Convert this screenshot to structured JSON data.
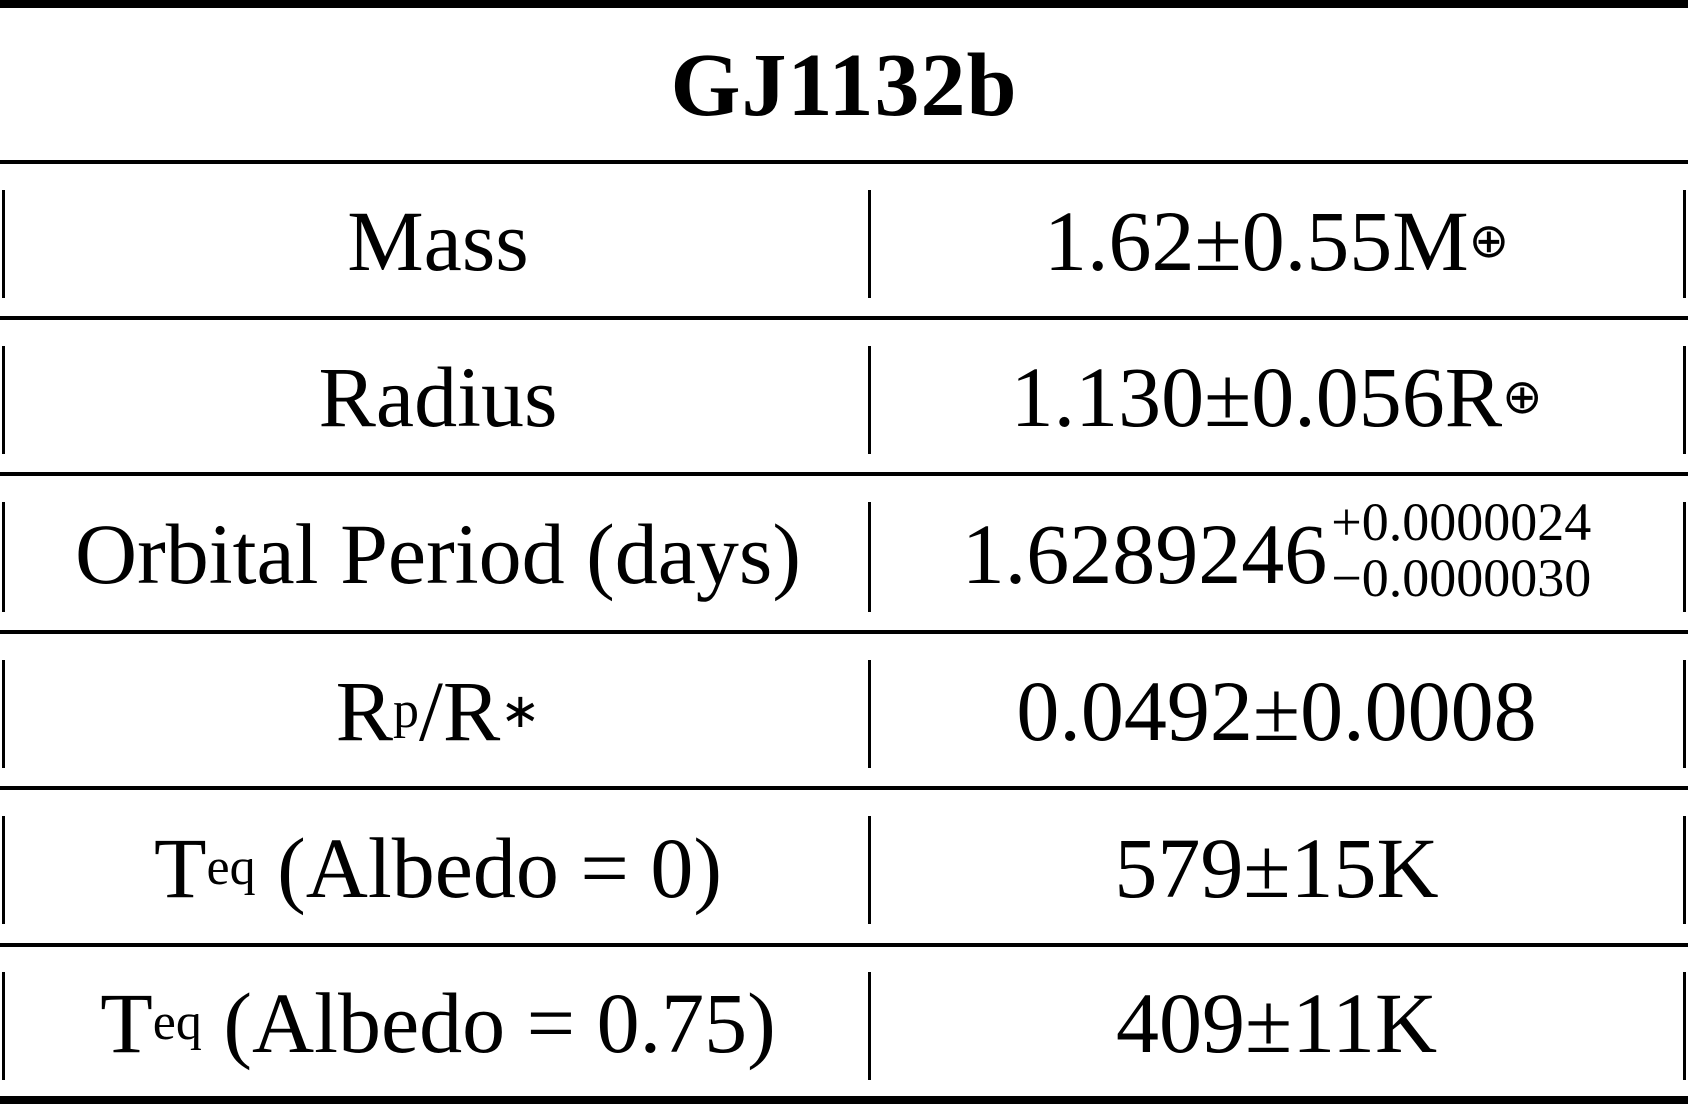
{
  "table": {
    "title": "GJ1132b",
    "rows": [
      {
        "label": "Mass",
        "value": "1.62±0.55M",
        "value_sub": "⊕"
      },
      {
        "label": "Radius",
        "value": "1.130±0.056R",
        "value_sub": "⊕"
      },
      {
        "label": "Orbital Period (days)",
        "value": "1.6289246",
        "value_sup": "+0.0000024",
        "value_sub": "−0.0000030"
      },
      {
        "label_main": "R",
        "label_sub": "p",
        "label_mid": "/R",
        "label_sub2": "∗",
        "value": "0.0492±0.0008"
      },
      {
        "label_main": "T",
        "label_sub": "eq",
        "label_rest": " (Albedo = 0)",
        "value": "579±15K"
      },
      {
        "label_main": "T",
        "label_sub": "eq",
        "label_rest": " (Albedo = 0.75)",
        "value": "409±11K"
      }
    ]
  }
}
